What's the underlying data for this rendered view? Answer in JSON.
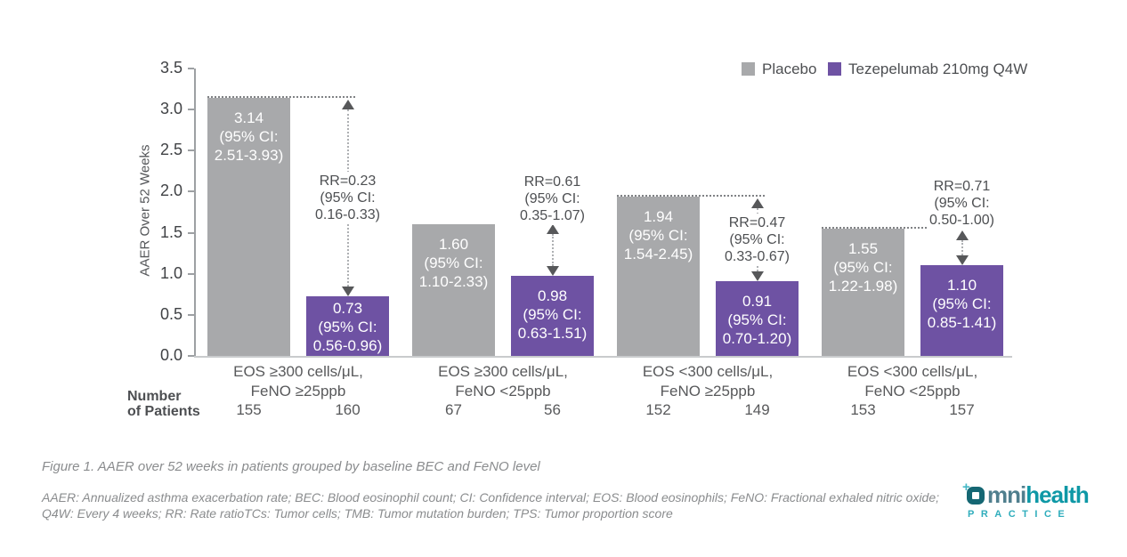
{
  "figure": {
    "caption": "Figure 1. AAER over 52 weeks in patients grouped by baseline BEC and FeNO level",
    "footnote_lines": [
      "AAER: Annualized asthma exacerbation rate; BEC: Blood eosinophil count; CI: Confidence interval; EOS: Blood eosinophils; FeNO: Fractional exhaled nitric oxide;",
      "Q4W: Every 4 weeks; RR: Rate ratioTCs: Tumor cells; TMB: Tumor mutation burden; TPS: Tumor proportion score"
    ]
  },
  "logo": {
    "word_part1": "mni",
    "word_part2": "health",
    "subtitle": "PRACTICE",
    "plus_glyph": "+"
  },
  "chart_data": {
    "type": "bar",
    "title": "",
    "ylabel": "AAER Over 52 Weeks",
    "xlabel": "",
    "ylim": [
      0,
      3.5
    ],
    "ytick_step": 0.5,
    "grid": false,
    "legend_position": "top-right",
    "patients_header_lines": [
      "Number",
      "of Patients"
    ],
    "series": [
      {
        "name": "Placebo",
        "color": "#a8a9ab"
      },
      {
        "name": "Tezepelumab 210mg Q4W",
        "color": "#6e52a3"
      }
    ],
    "groups": [
      {
        "category_lines": [
          "EOS ≥300 cells/μL,",
          "FeNO ≥25ppb"
        ],
        "placebo": {
          "value": 3.14,
          "label_lines": [
            "3.14",
            "(95% CI:",
            "2.51-3.93)"
          ],
          "patients": "155"
        },
        "tezepelumab": {
          "value": 0.73,
          "label_lines": [
            "0.73",
            "(95% CI:",
            "0.56-0.96)"
          ],
          "patients": "160"
        },
        "rate_ratio": {
          "lines": [
            "RR=0.23",
            "(95% CI:",
            "0.16-0.33)"
          ],
          "hline": true
        }
      },
      {
        "category_lines": [
          "EOS ≥300 cells/μL,",
          "FeNO <25ppb"
        ],
        "placebo": {
          "value": 1.6,
          "label_lines": [
            "1.60",
            "(95% CI:",
            "1.10-2.33)"
          ],
          "patients": "67"
        },
        "tezepelumab": {
          "value": 0.98,
          "label_lines": [
            "0.98",
            "(95% CI:",
            "0.63-1.51)"
          ],
          "patients": "56"
        },
        "rate_ratio": {
          "lines": [
            "RR=0.61",
            "(95% CI:",
            "0.35-1.07)"
          ],
          "hline": false
        }
      },
      {
        "category_lines": [
          "EOS <300 cells/μL,",
          "FeNO ≥25ppb"
        ],
        "placebo": {
          "value": 1.94,
          "label_lines": [
            "1.94",
            "(95% CI:",
            "1.54-2.45)"
          ],
          "patients": "152"
        },
        "tezepelumab": {
          "value": 0.91,
          "label_lines": [
            "0.91",
            "(95% CI:",
            "0.70-1.20)"
          ],
          "patients": "149"
        },
        "rate_ratio": {
          "lines": [
            "RR=0.47",
            "(95% CI:",
            "0.33-0.67)"
          ],
          "hline": true
        }
      },
      {
        "category_lines": [
          "EOS <300 cells/μL,",
          "FeNO <25ppb"
        ],
        "placebo": {
          "value": 1.55,
          "label_lines": [
            "1.55",
            "(95% CI:",
            "1.22-1.98)"
          ],
          "patients": "153"
        },
        "tezepelumab": {
          "value": 1.1,
          "label_lines": [
            "1.10",
            "(95% CI:",
            "0.85-1.41)"
          ],
          "patients": "157"
        },
        "rate_ratio": {
          "lines": [
            "RR=0.71",
            "(95% CI:",
            "0.50-1.00)"
          ],
          "hline": true
        }
      }
    ]
  }
}
